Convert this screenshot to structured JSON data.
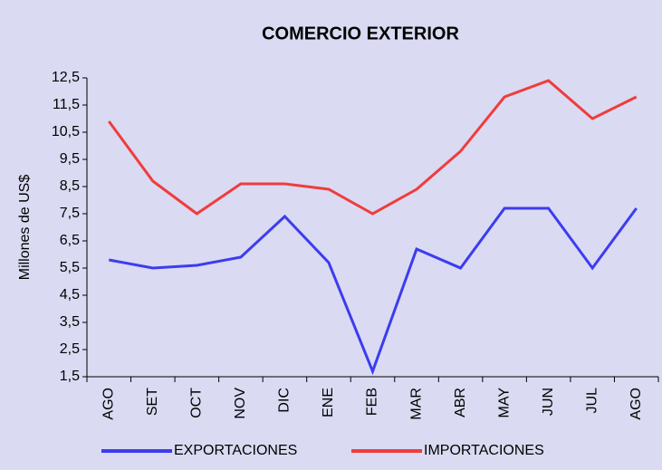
{
  "chart_data": {
    "type": "line",
    "title": "COMERCIO EXTERIOR",
    "y_label": "Millones de US$",
    "categories": [
      "AGO",
      "SET",
      "OCT",
      "NOV",
      "DIC",
      "ENE",
      "FEB",
      "MAR",
      "ABR",
      "MAY",
      "JUN",
      "JUL",
      "AGO"
    ],
    "series": [
      {
        "name": "EXPORTACIONES",
        "color": "#3c3cf0",
        "values": [
          5.8,
          5.5,
          5.6,
          5.9,
          7.4,
          5.7,
          1.7,
          6.2,
          5.5,
          7.7,
          7.7,
          5.5,
          7.7
        ]
      },
      {
        "name": "IMPORTACIONES",
        "color": "#f03c3c",
        "values": [
          10.9,
          8.7,
          7.5,
          8.6,
          8.6,
          8.4,
          7.5,
          8.4,
          9.8,
          11.8,
          12.4,
          11.0,
          11.8
        ]
      }
    ],
    "ylim": [
      1.5,
      12.5
    ],
    "yticks": [
      {
        "value": 1.5,
        "label": "1,5"
      },
      {
        "value": 2.5,
        "label": "2,5"
      },
      {
        "value": 3.5,
        "label": "3,5"
      },
      {
        "value": 4.5,
        "label": "4,5"
      },
      {
        "value": 5.5,
        "label": "5,5"
      },
      {
        "value": 6.5,
        "label": "6,5"
      },
      {
        "value": 7.5,
        "label": "7,5"
      },
      {
        "value": 8.5,
        "label": "8,5"
      },
      {
        "value": 9.5,
        "label": "9,5"
      },
      {
        "value": 10.5,
        "label": "10,5"
      },
      {
        "value": 11.5,
        "label": "11,5"
      },
      {
        "value": 12.5,
        "label": "12,5"
      }
    ],
    "grid": false,
    "legend": "bottom"
  }
}
